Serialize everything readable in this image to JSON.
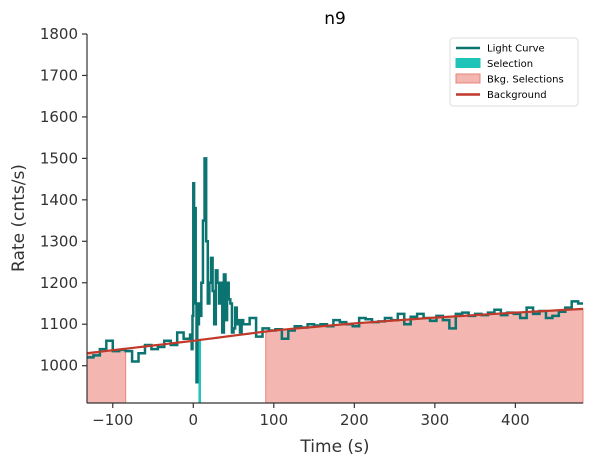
{
  "chart_data": {
    "type": "line",
    "title": "n9",
    "xlabel": "Time (s)",
    "ylabel": "Rate (cnts/s)",
    "xlim": [
      -132,
      484
    ],
    "ylim": [
      910,
      1800
    ],
    "xticks": [
      -100,
      0,
      100,
      200,
      300,
      400
    ],
    "yticks": [
      1000,
      1100,
      1200,
      1300,
      1400,
      1500,
      1600,
      1700,
      1800
    ],
    "grid": false,
    "legend_position": "top-right",
    "colors": {
      "light_curve": "#0b7370",
      "selection": "#1ec4b8",
      "bkg_selection": "#f4b6b0",
      "bkg_edge": "#e8847a",
      "background": "#c0392b",
      "axis": "#333333"
    },
    "legend": [
      {
        "key": "lc",
        "label": "Light Curve"
      },
      {
        "key": "sel",
        "label": "Selection"
      },
      {
        "key": "bkgsel",
        "label": "Bkg. Selections"
      },
      {
        "key": "bkg",
        "label": "Background"
      }
    ],
    "background_fit": {
      "name": "Background",
      "x": [
        -132,
        0,
        100,
        200,
        300,
        400,
        484
      ],
      "y": [
        1030,
        1060,
        1085,
        1102,
        1116,
        1128,
        1137
      ]
    },
    "bkg_selections": [
      [
        -132,
        -84
      ],
      [
        90,
        484
      ]
    ],
    "selection": [
      6,
      10
    ],
    "light_curve": {
      "name": "Light Curve",
      "x": [
        -132,
        -124,
        -116,
        -108,
        -100,
        -92,
        -84,
        -76,
        -68,
        -60,
        -52,
        -44,
        -36,
        -28,
        -20,
        -12,
        -4,
        -2,
        -1,
        0,
        1,
        2,
        3,
        4,
        5,
        6,
        7,
        8,
        10,
        12,
        14,
        16,
        18,
        20,
        22,
        24,
        26,
        28,
        30,
        32,
        34,
        36,
        38,
        40,
        42,
        44,
        46,
        48,
        50,
        52,
        54,
        56,
        58,
        60,
        62,
        70,
        78,
        86,
        94,
        102,
        110,
        118,
        126,
        134,
        142,
        150,
        158,
        166,
        174,
        182,
        190,
        198,
        206,
        214,
        222,
        230,
        238,
        246,
        254,
        262,
        270,
        278,
        286,
        294,
        302,
        310,
        318,
        326,
        334,
        342,
        350,
        358,
        366,
        374,
        382,
        390,
        398,
        406,
        414,
        422,
        430,
        438,
        446,
        454,
        462,
        470,
        478
      ],
      "y": [
        1020,
        1025,
        1040,
        1060,
        1035,
        1038,
        1035,
        1010,
        1030,
        1050,
        1040,
        1045,
        1060,
        1050,
        1080,
        1065,
        1075,
        1040,
        1120,
        1440,
        1200,
        1380,
        1150,
        960,
        1120,
        1100,
        1150,
        1120,
        1200,
        1350,
        1500,
        1300,
        1150,
        1200,
        1260,
        1180,
        1100,
        1230,
        1200,
        1150,
        1200,
        1080,
        1220,
        1110,
        1200,
        1160,
        1150,
        1080,
        1090,
        1140,
        1100,
        1110,
        1080,
        1110,
        1100,
        1115,
        1070,
        1090,
        1085,
        1088,
        1065,
        1085,
        1095,
        1092,
        1100,
        1097,
        1100,
        1095,
        1110,
        1105,
        1100,
        1095,
        1115,
        1112,
        1105,
        1107,
        1115,
        1110,
        1125,
        1100,
        1118,
        1125,
        1115,
        1108,
        1120,
        1110,
        1090,
        1125,
        1128,
        1120,
        1125,
        1122,
        1128,
        1135,
        1122,
        1128,
        1125,
        1115,
        1140,
        1125,
        1132,
        1115,
        1120,
        1130,
        1140,
        1155,
        1150
      ]
    }
  }
}
